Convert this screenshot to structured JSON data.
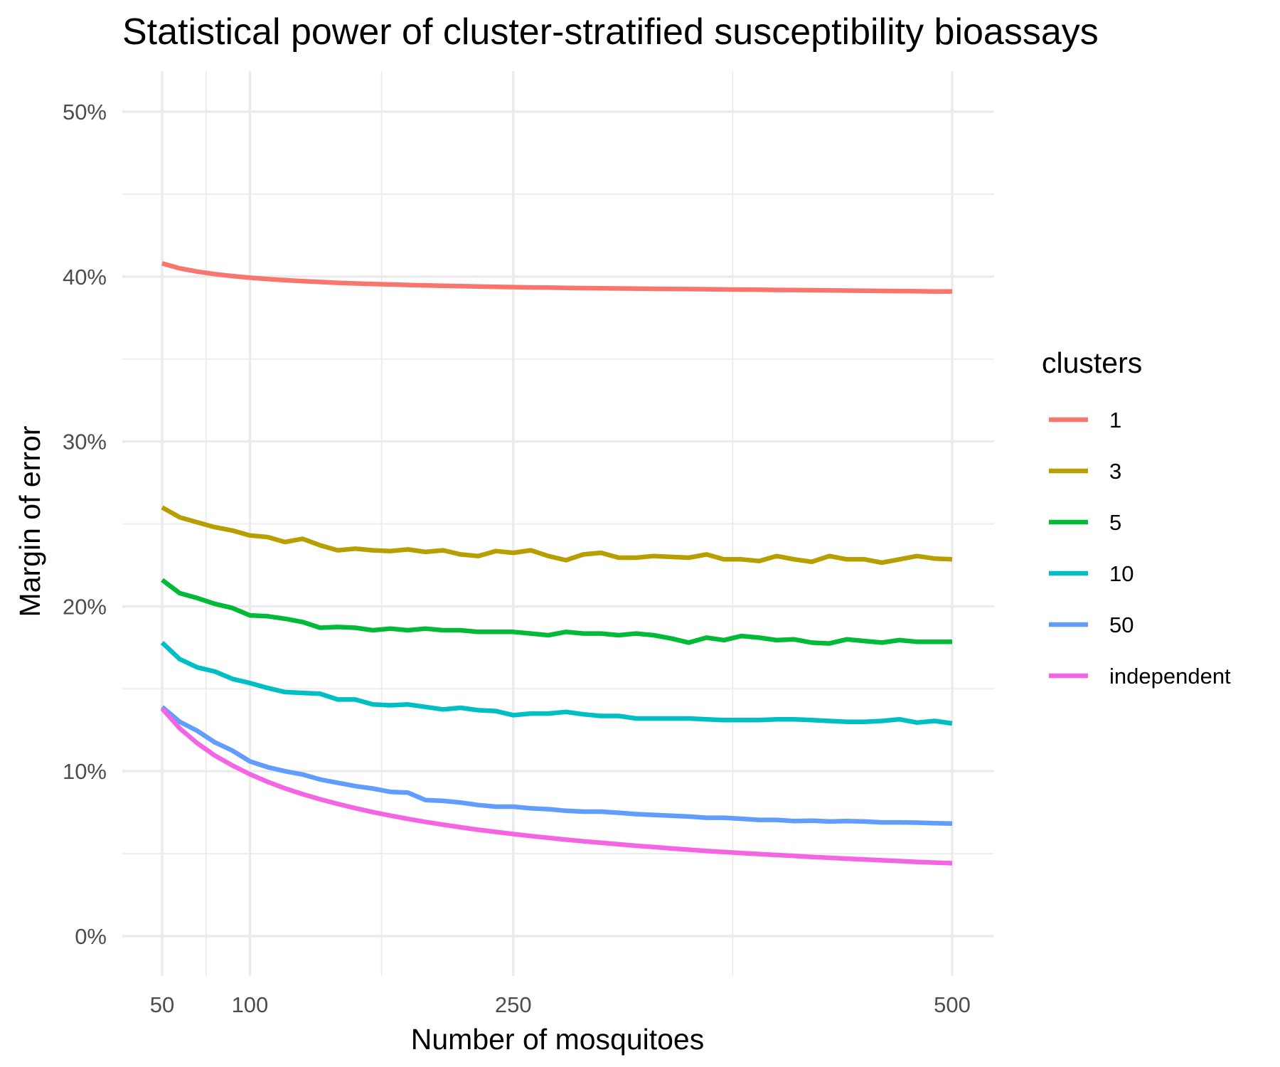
{
  "chart_data": {
    "type": "line",
    "title": "Statistical power of cluster-stratified susceptibility bioassays",
    "xlabel": "Number of mosquitoes",
    "ylabel": "Margin of error",
    "xlim": [
      50,
      500
    ],
    "ylim": [
      0,
      0.5
    ],
    "x_ticks": [
      50,
      100,
      250,
      500
    ],
    "x_tick_labels": [
      "50",
      "100",
      "250",
      "500"
    ],
    "y_ticks": [
      0,
      0.1,
      0.2,
      0.3,
      0.4,
      0.5
    ],
    "y_tick_labels": [
      "0%",
      "10%",
      "20%",
      "30%",
      "40%",
      "50%"
    ],
    "grid": true,
    "legend": {
      "title": "clusters",
      "position": "right"
    },
    "x": [
      50,
      60,
      70,
      80,
      90,
      100,
      110,
      120,
      130,
      140,
      150,
      160,
      170,
      180,
      190,
      200,
      210,
      220,
      230,
      240,
      250,
      260,
      270,
      280,
      290,
      300,
      310,
      320,
      330,
      340,
      350,
      360,
      370,
      380,
      390,
      400,
      410,
      420,
      430,
      440,
      450,
      460,
      470,
      480,
      490,
      500
    ],
    "series": [
      {
        "name": "1",
        "color": "#F8766D",
        "values": [
          0.408,
          0.405,
          0.403,
          0.4015,
          0.4003,
          0.3993,
          0.3985,
          0.3978,
          0.3972,
          0.3967,
          0.3962,
          0.3958,
          0.3955,
          0.3952,
          0.3949,
          0.3946,
          0.3944,
          0.3942,
          0.394,
          0.3938,
          0.3936,
          0.3934,
          0.3933,
          0.3931,
          0.393,
          0.3929,
          0.3928,
          0.3927,
          0.3926,
          0.3925,
          0.3924,
          0.3923,
          0.3922,
          0.3921,
          0.392,
          0.3919,
          0.3918,
          0.3917,
          0.3916,
          0.3915,
          0.3914,
          0.3913,
          0.3912,
          0.3911,
          0.391,
          0.391
        ]
      },
      {
        "name": "3",
        "color": "#B79F00",
        "values": [
          0.26,
          0.254,
          0.251,
          0.248,
          0.246,
          0.243,
          0.242,
          0.239,
          0.241,
          0.237,
          0.234,
          0.235,
          0.234,
          0.2335,
          0.2345,
          0.233,
          0.234,
          0.2315,
          0.2305,
          0.2335,
          0.2325,
          0.234,
          0.2305,
          0.228,
          0.2315,
          0.2325,
          0.2295,
          0.2295,
          0.2305,
          0.23,
          0.2295,
          0.2315,
          0.2285,
          0.2285,
          0.2275,
          0.2305,
          0.2285,
          0.227,
          0.2305,
          0.2285,
          0.2285,
          0.2265,
          0.2285,
          0.2305,
          0.229,
          0.2285
        ]
      },
      {
        "name": "5",
        "color": "#00BA38",
        "values": [
          0.216,
          0.208,
          0.205,
          0.2015,
          0.199,
          0.1945,
          0.194,
          0.1925,
          0.1905,
          0.187,
          0.1875,
          0.187,
          0.1855,
          0.1865,
          0.1855,
          0.1865,
          0.1855,
          0.1855,
          0.1845,
          0.1845,
          0.1845,
          0.1835,
          0.1825,
          0.1845,
          0.1835,
          0.1835,
          0.1825,
          0.1835,
          0.1825,
          0.1805,
          0.178,
          0.181,
          0.1795,
          0.182,
          0.181,
          0.1795,
          0.18,
          0.178,
          0.1775,
          0.18,
          0.179,
          0.178,
          0.1795,
          0.1785,
          0.1785,
          0.1785
        ]
      },
      {
        "name": "10",
        "color": "#00BFC4",
        "values": [
          0.178,
          0.168,
          0.163,
          0.1605,
          0.156,
          0.1535,
          0.1505,
          0.148,
          0.1475,
          0.147,
          0.1435,
          0.1435,
          0.1405,
          0.14,
          0.1405,
          0.139,
          0.1375,
          0.1385,
          0.137,
          0.1365,
          0.134,
          0.135,
          0.135,
          0.136,
          0.1345,
          0.1335,
          0.1335,
          0.132,
          0.132,
          0.132,
          0.132,
          0.1315,
          0.131,
          0.131,
          0.131,
          0.1315,
          0.1315,
          0.131,
          0.1305,
          0.13,
          0.13,
          0.1305,
          0.1315,
          0.1295,
          0.1305,
          0.129
        ]
      },
      {
        "name": "50",
        "color": "#619CFF",
        "values": [
          0.139,
          0.13,
          0.1245,
          0.1175,
          0.1125,
          0.106,
          0.1025,
          0.1,
          0.098,
          0.095,
          0.093,
          0.091,
          0.0895,
          0.0875,
          0.087,
          0.0825,
          0.082,
          0.081,
          0.0795,
          0.0785,
          0.0785,
          0.0775,
          0.077,
          0.076,
          0.0755,
          0.0755,
          0.0748,
          0.074,
          0.0735,
          0.073,
          0.0725,
          0.0718,
          0.0718,
          0.0712,
          0.0705,
          0.0705,
          0.0698,
          0.07,
          0.0695,
          0.0698,
          0.0695,
          0.069,
          0.069,
          0.0688,
          0.0685,
          0.0683
        ]
      },
      {
        "name": "independent",
        "color": "#F564E3",
        "values": [
          0.138,
          0.126,
          0.117,
          0.1095,
          0.1035,
          0.0982,
          0.0936,
          0.0896,
          0.0861,
          0.083,
          0.0802,
          0.0776,
          0.0752,
          0.0731,
          0.0711,
          0.0693,
          0.0676,
          0.066,
          0.0645,
          0.0632,
          0.0619,
          0.0607,
          0.0596,
          0.0585,
          0.0575,
          0.0566,
          0.0557,
          0.0548,
          0.054,
          0.0532,
          0.0524,
          0.0517,
          0.051,
          0.0504,
          0.0498,
          0.0492,
          0.0486,
          0.048,
          0.0475,
          0.047,
          0.0465,
          0.046,
          0.0455,
          0.045,
          0.0446,
          0.0442
        ]
      }
    ]
  }
}
